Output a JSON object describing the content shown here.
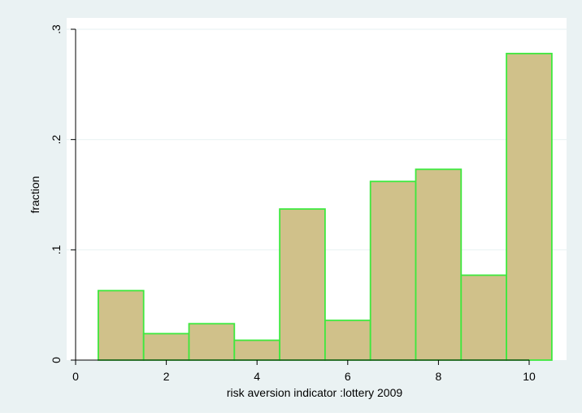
{
  "chart_data": {
    "type": "bar",
    "title": "",
    "xlabel": "risk aversion indicator :lottery 2009",
    "ylabel": "fraction",
    "x": [
      1,
      2,
      3,
      4,
      5,
      6,
      7,
      8,
      9,
      10
    ],
    "values": [
      0.063,
      0.024,
      0.033,
      0.018,
      0.137,
      0.036,
      0.162,
      0.173,
      0.077,
      0.278
    ],
    "bin_width": 1,
    "xlim": [
      -0.1,
      10.8
    ],
    "ylim": [
      0,
      0.3
    ],
    "xticks": [
      0,
      2,
      4,
      6,
      8,
      10
    ],
    "xtick_labels": [
      "0",
      "2",
      "4",
      "6",
      "8",
      "10"
    ],
    "yticks": [
      0,
      0.1,
      0.2,
      0.3
    ],
    "ytick_labels": [
      "0",
      ".1",
      ".2",
      ".3"
    ],
    "grid": true,
    "colors": {
      "outer_background": "#eaf2f3",
      "plot_background": "#ffffff",
      "bar_fill": "#d0c18a",
      "bar_edge": "#3ee83e",
      "grid": "#eaf2f3",
      "axis": "#000000"
    }
  }
}
